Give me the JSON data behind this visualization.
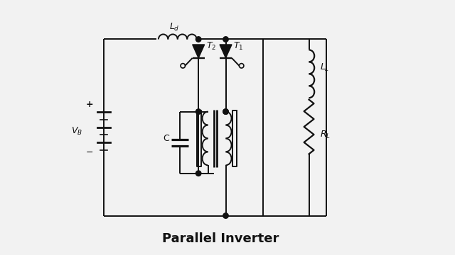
{
  "title": "Parallel Inverter",
  "bg_color": "#f2f2f2",
  "line_color": "#111111",
  "title_fontsize": 13,
  "figsize": [
    6.4,
    3.6
  ],
  "dpi": 100
}
